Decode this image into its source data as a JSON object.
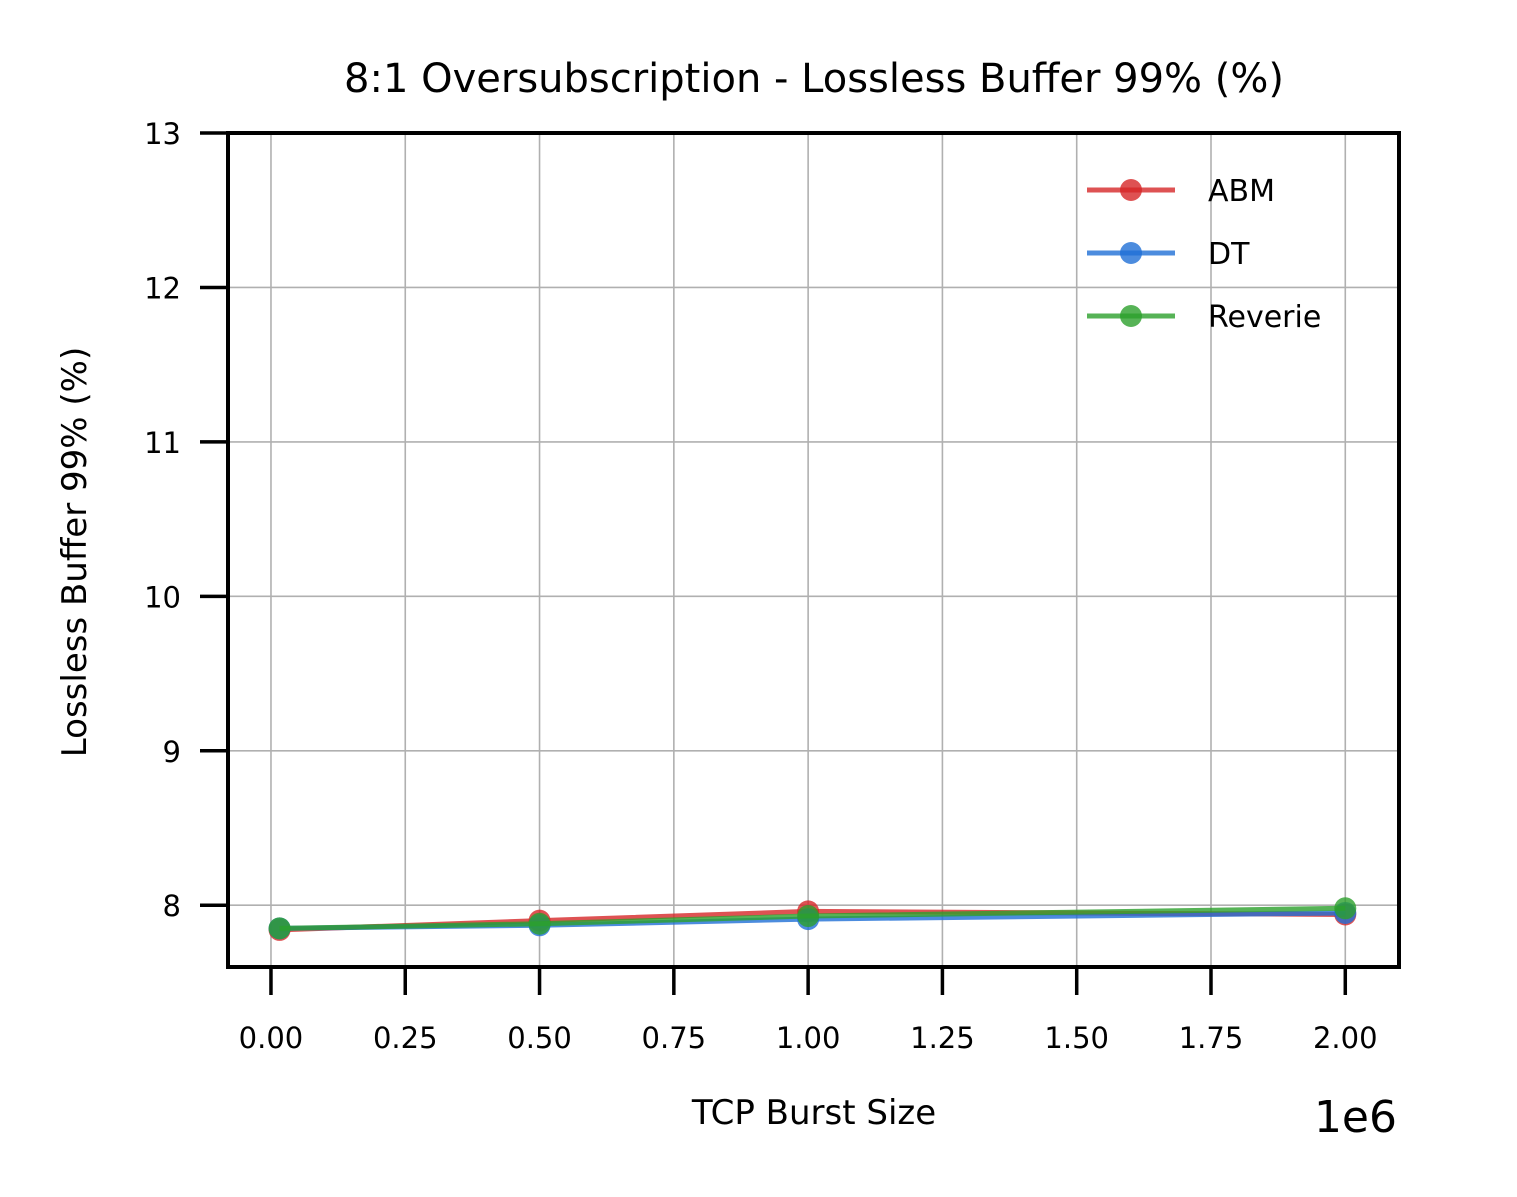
{
  "chart_data": {
    "type": "line",
    "title": "8:1 Oversubscription - Lossless Buffer 99% (%)",
    "xlabel": "TCP Burst Size",
    "ylabel": "Lossless Buffer 99% (%)",
    "x_offset_label": "1e6",
    "x_scale": 1000000,
    "xlim": [
      -80000,
      2100000
    ],
    "ylim": [
      7.6,
      13
    ],
    "x_ticks": [
      0,
      250000,
      500000,
      750000,
      1000000,
      1250000,
      1500000,
      1750000,
      2000000
    ],
    "x_tick_labels": [
      "0.00",
      "0.25",
      "0.50",
      "0.75",
      "1.00",
      "1.25",
      "1.50",
      "1.75",
      "2.00"
    ],
    "y_ticks": [
      8,
      9,
      10,
      11,
      12,
      13
    ],
    "y_tick_labels": [
      "8",
      "9",
      "10",
      "11",
      "12",
      "13"
    ],
    "grid": true,
    "legend_position": "top-right",
    "x": [
      16000,
      500000,
      1000000,
      2000000
    ],
    "series": [
      {
        "name": "ABM",
        "color": "#d62728",
        "values": [
          7.84,
          7.9,
          7.96,
          7.94
        ]
      },
      {
        "name": "DT",
        "color": "#1f6fd6",
        "values": [
          7.85,
          7.87,
          7.91,
          7.95
        ]
      },
      {
        "name": "Reverie",
        "color": "#2ca02c",
        "values": [
          7.85,
          7.88,
          7.93,
          7.98
        ]
      }
    ]
  }
}
